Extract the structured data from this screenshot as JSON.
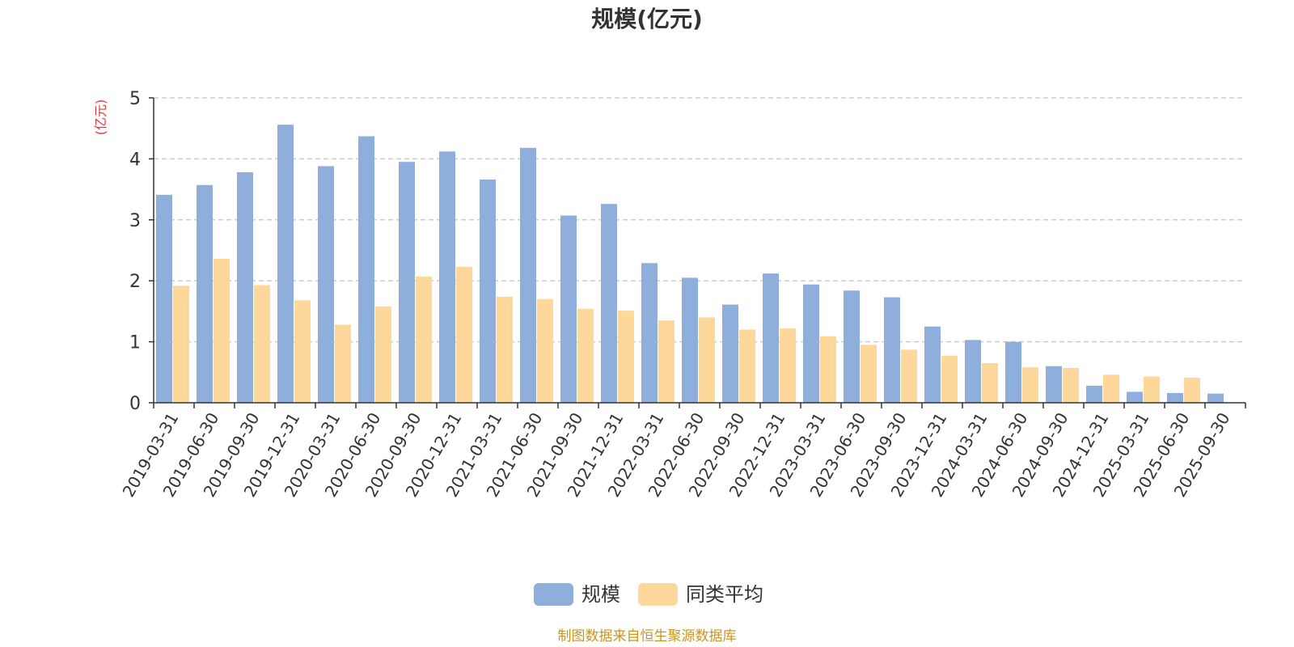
{
  "chart_data": {
    "type": "bar",
    "title": "规模(亿元)",
    "ylabel": "(亿元)",
    "xlabel": "",
    "ylim": [
      0,
      5
    ],
    "yticks": [
      0,
      1,
      2,
      3,
      4,
      5
    ],
    "grid": true,
    "legend_position": "bottom",
    "categories": [
      "2019-03-31",
      "2019-06-30",
      "2019-09-30",
      "2019-12-31",
      "2020-03-31",
      "2020-06-30",
      "2020-09-30",
      "2020-12-31",
      "2021-03-31",
      "2021-06-30",
      "2021-09-30",
      "2021-12-31",
      "2022-03-31",
      "2022-06-30",
      "2022-09-30",
      "2022-12-31",
      "2023-03-31",
      "2023-06-30",
      "2023-09-30",
      "2023-12-31",
      "2024-03-31",
      "2024-06-30",
      "2024-09-30",
      "2024-12-31",
      "2025-03-31",
      "2025-06-30",
      "2025-09-30"
    ],
    "series": [
      {
        "name": "规模",
        "color": "#8eaedb",
        "values": [
          3.41,
          3.57,
          3.78,
          4.56,
          3.88,
          4.37,
          3.95,
          4.12,
          3.66,
          4.18,
          3.07,
          3.26,
          2.29,
          2.05,
          1.61,
          2.12,
          1.94,
          1.84,
          1.73,
          1.25,
          1.03,
          1.0,
          0.6,
          0.28,
          0.18,
          0.16,
          0.15
        ]
      },
      {
        "name": "同类平均",
        "color": "#fdd89a",
        "values": [
          1.92,
          2.36,
          1.93,
          1.68,
          1.28,
          1.58,
          2.07,
          2.23,
          1.74,
          1.7,
          1.54,
          1.51,
          1.35,
          1.4,
          1.2,
          1.22,
          1.09,
          0.95,
          0.87,
          0.77,
          0.65,
          0.58,
          0.57,
          0.46,
          0.43,
          0.41,
          null
        ]
      }
    ],
    "source_note": "制图数据来自恒生聚源数据库",
    "colors": {
      "axis": "#333333",
      "grid": "#cccccc",
      "ylabel": "#e0383e",
      "source": "#c8961e"
    }
  }
}
